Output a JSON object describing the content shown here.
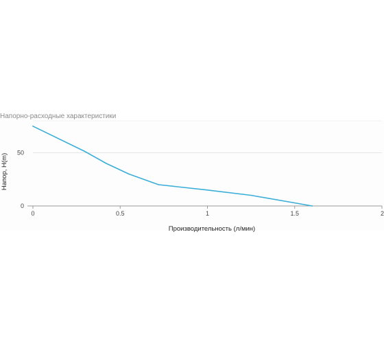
{
  "chart_data": {
    "type": "line",
    "title": "Напорно-расходные характеристики",
    "xlabel": "Производительность (л/мин)",
    "ylabel": "Напор, H(m)",
    "xlim": [
      0,
      2
    ],
    "ylim": [
      0,
      80
    ],
    "x_ticks": [
      0,
      0.5,
      1,
      1.5,
      2
    ],
    "x_tick_labels": [
      "0",
      "0.5",
      "1",
      "1.5",
      "2"
    ],
    "y_ticks": [
      0,
      50
    ],
    "y_tick_labels": [
      "0",
      "50"
    ],
    "grid": true,
    "series": [
      {
        "x": [
          0,
          0.3,
          0.42,
          0.55,
          0.72,
          1.0,
          1.25,
          1.6
        ],
        "y": [
          75,
          51,
          40,
          30,
          20,
          15,
          10,
          0
        ]
      }
    ],
    "colors": {
      "line": "#3aaed8",
      "grid": "#e6e6e6",
      "axis": "#999999"
    }
  }
}
